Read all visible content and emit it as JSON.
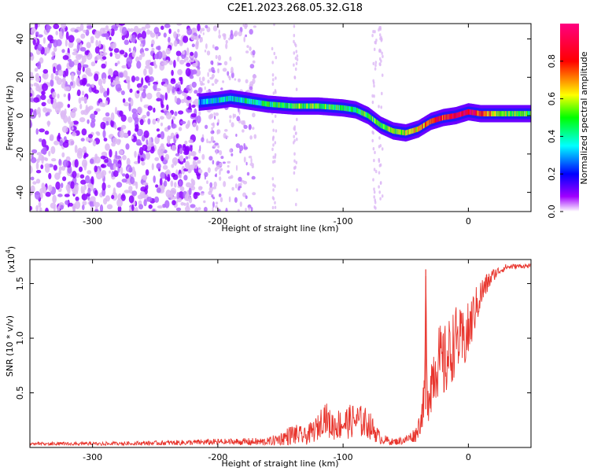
{
  "title": "C2E1.2023.268.05.32.G18",
  "colors": {
    "snr_line": "#e8342c",
    "spectrogram_background": "#d9b3f0",
    "colormap": [
      "#ffffff",
      "#a000ff",
      "#0000ff",
      "#00ffff",
      "#00ff00",
      "#ffff00",
      "#ff0000",
      "#ff00a0"
    ]
  },
  "chart_data": [
    {
      "type": "heatmap",
      "xlabel": "Height of straight line (km)",
      "ylabel": "Frequency (Hz)",
      "xlim": [
        -350,
        50
      ],
      "ylim": [
        -50,
        48
      ],
      "xticks": [
        -300,
        -200,
        -100,
        0
      ],
      "yticks": [
        -40,
        -20,
        0,
        20,
        40
      ],
      "grid": false,
      "colorbar": {
        "label": "Normalized spectral amplitude",
        "range": [
          0,
          1
        ],
        "ticks": [
          "0.0",
          "0.2",
          "0.4",
          "0.6",
          "0.8"
        ],
        "colormap": "rainbow"
      },
      "noise_region_x": [
        -350,
        -215
      ],
      "scatter_region_x": [
        -215,
        -170
      ],
      "signal_track": {
        "x": [
          -215,
          -200,
          -190,
          -180,
          -160,
          -140,
          -120,
          -100,
          -90,
          -80,
          -70,
          -60,
          -50,
          -40,
          -30,
          -20,
          -10,
          0,
          10,
          20,
          30,
          40,
          50
        ],
        "freq": [
          7,
          8,
          9,
          8,
          6,
          5,
          5,
          4,
          3,
          0,
          -5,
          -8,
          -9,
          -7,
          -3,
          -1,
          0,
          2,
          1,
          1,
          1,
          1,
          1
        ],
        "amplitude": [
          0.3,
          0.4,
          0.35,
          0.4,
          0.45,
          0.5,
          0.5,
          0.45,
          0.45,
          0.5,
          0.5,
          0.55,
          0.6,
          0.65,
          0.75,
          0.8,
          0.85,
          0.9,
          0.8,
          0.6,
          0.55,
          0.5,
          0.5
        ]
      }
    },
    {
      "type": "line",
      "xlabel": "Height of straight line (km)",
      "ylabel": "SNR (10 * v/v)",
      "scale_note": "(x10^4)",
      "scale_base": "(x10",
      "scale_exp": "4",
      "scale_close": ")",
      "xlim": [
        -350,
        50
      ],
      "ylim": [
        0,
        1.72
      ],
      "xticks": [
        -300,
        -200,
        -100,
        0
      ],
      "yticks": [
        0.5,
        1.0,
        1.5
      ],
      "yticklabels": [
        "0.5",
        "1.0",
        "1.5"
      ],
      "grid": false,
      "series": [
        {
          "x": [
            -350,
            -300,
            -250,
            -200,
            -160,
            -150,
            -140,
            -130,
            -120,
            -115,
            -110,
            -100,
            -90,
            -80,
            -75,
            -70,
            -60,
            -50,
            -42,
            -38,
            -35,
            -34,
            -33,
            -30,
            -25,
            -20,
            -15,
            -10,
            -5,
            0,
            5,
            10,
            15,
            20,
            25,
            30,
            40,
            50
          ],
          "y": [
            0.03,
            0.03,
            0.04,
            0.05,
            0.05,
            0.08,
            0.12,
            0.1,
            0.18,
            0.3,
            0.2,
            0.22,
            0.25,
            0.22,
            0.15,
            0.08,
            0.05,
            0.07,
            0.12,
            0.25,
            0.45,
            1.63,
            0.45,
            0.6,
            0.8,
            0.75,
            0.85,
            1.0,
            0.95,
            1.05,
            1.25,
            1.4,
            1.5,
            1.58,
            1.62,
            1.65,
            1.66,
            1.66
          ],
          "spread": [
            0.02,
            0.02,
            0.02,
            0.03,
            0.04,
            0.06,
            0.1,
            0.08,
            0.12,
            0.15,
            0.14,
            0.15,
            0.16,
            0.14,
            0.1,
            0.05,
            0.03,
            0.04,
            0.07,
            0.12,
            0.2,
            0.0,
            0.25,
            0.3,
            0.35,
            0.35,
            0.35,
            0.3,
            0.3,
            0.28,
            0.2,
            0.15,
            0.1,
            0.06,
            0.04,
            0.03,
            0.02,
            0.02
          ]
        }
      ]
    }
  ]
}
